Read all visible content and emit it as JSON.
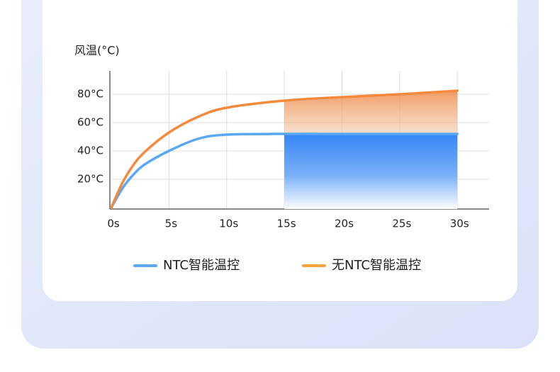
{
  "chart_data": {
    "type": "line",
    "y_label": "风温(°C)",
    "x": [
      0,
      1,
      2,
      3,
      5,
      7.5,
      10,
      15,
      20,
      25,
      30
    ],
    "series": [
      {
        "name": "NTC智能温控",
        "color": "#5aa8f5",
        "values": [
          0,
          14,
          24,
          31,
          40,
          48.5,
          51.5,
          52,
          52,
          52,
          52
        ]
      },
      {
        "name": "无NTC智能温控",
        "color": "#f7a23a",
        "values": [
          0,
          18,
          31,
          40,
          53,
          64,
          70.5,
          75.5,
          78,
          80,
          82.5
        ]
      }
    ],
    "xlim": [
      0,
      33
    ],
    "ylim": [
      0,
      96
    ],
    "xticks": [
      {
        "value": 0,
        "label": "0s"
      },
      {
        "value": 5,
        "label": "5s"
      },
      {
        "value": 10,
        "label": "10s"
      },
      {
        "value": 15,
        "label": "15s"
      },
      {
        "value": 20,
        "label": "20s"
      },
      {
        "value": 25,
        "label": "25s"
      },
      {
        "value": 30,
        "label": "30s"
      }
    ],
    "yticks": [
      {
        "value": 20,
        "label": "20°C"
      },
      {
        "value": 40,
        "label": "40°C"
      },
      {
        "value": 60,
        "label": "60°C"
      },
      {
        "value": 80,
        "label": "80°C"
      }
    ],
    "grid": true
  }
}
